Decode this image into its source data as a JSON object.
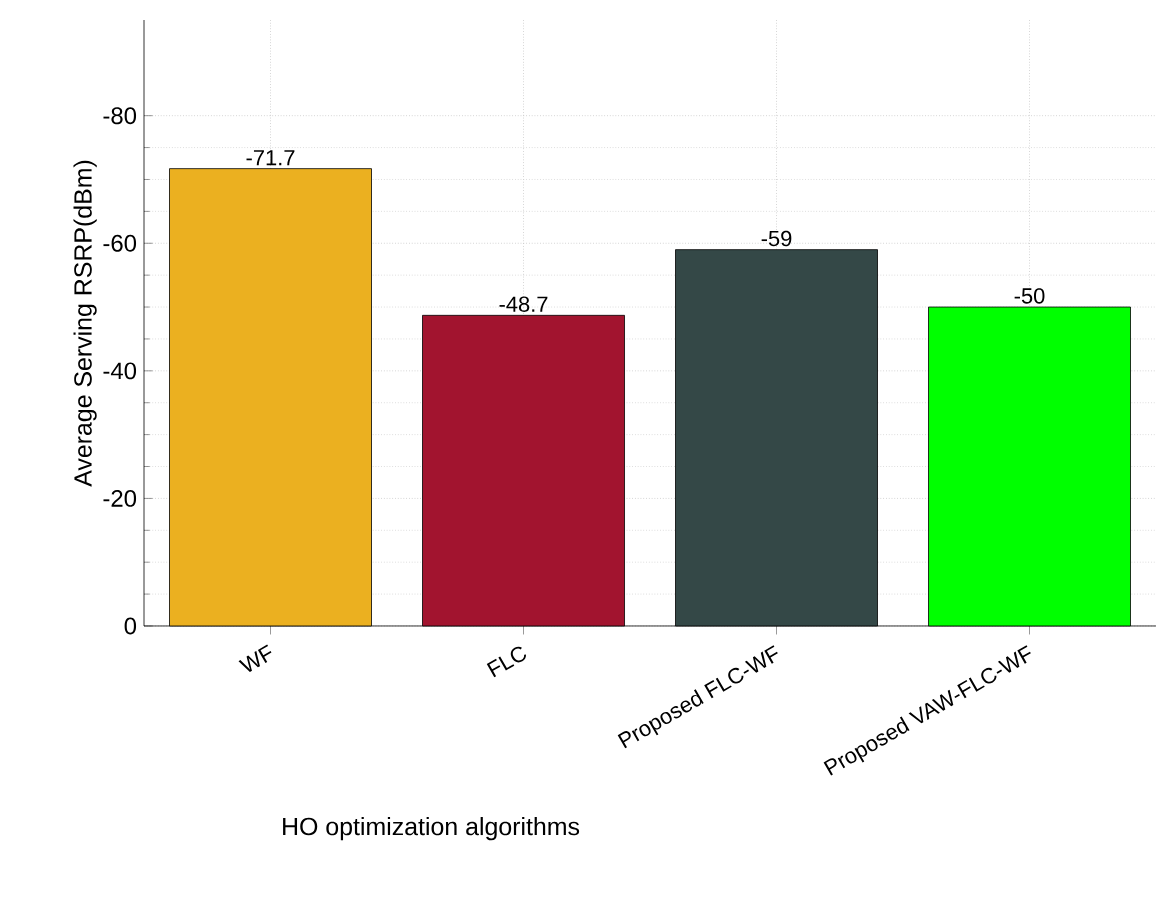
{
  "chart_data": {
    "type": "bar",
    "xlabel": "HO optimization algorithms",
    "ylabel": "Average Serving RSRP(dBm)",
    "categories": [
      "WF",
      "FLC",
      "Proposed FLC-WF",
      "Proposed VAW-FLC-WF"
    ],
    "values": [
      -71.7,
      -48.7,
      -59,
      -50
    ],
    "colors": [
      "#ebb020",
      "#a2142f",
      "#344847",
      "#00ff00"
    ],
    "ylim": [
      0,
      -95
    ],
    "yticks": [
      0,
      -20,
      -40,
      -60,
      -80
    ],
    "grid": true,
    "data_labels": true
  }
}
